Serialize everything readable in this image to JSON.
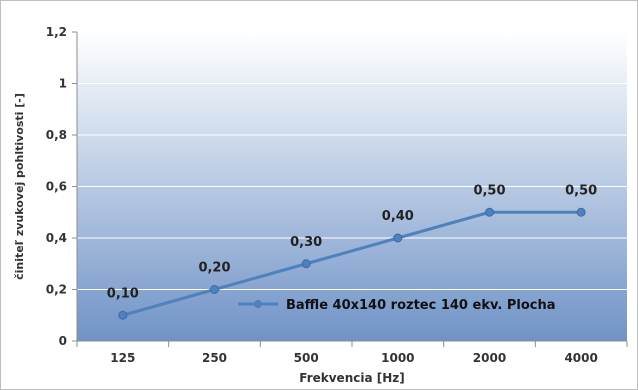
{
  "chart_data": {
    "type": "line",
    "categories": [
      "125",
      "250",
      "500",
      "1000",
      "2000",
      "4000"
    ],
    "series": [
      {
        "name": "Baffle 40x140  roztec 140 ekv. Plocha",
        "values": [
          0.1,
          0.2,
          0.3,
          0.4,
          0.5,
          0.5
        ],
        "labels": [
          "0,10",
          "0,20",
          "0,30",
          "0,40",
          "0,50",
          "0,50"
        ]
      }
    ],
    "xlabel": "Frekvencia [Hz]",
    "ylabel": "činiteľ zvukovej pohltivosti [-]",
    "ylim": [
      0,
      1.2
    ],
    "yticks": [
      0,
      0.2,
      0.4,
      0.6,
      0.8,
      1,
      1.2
    ],
    "ytick_labels": [
      "0",
      "0,2",
      "0,4",
      "0,6",
      "0,8",
      "1",
      "1,2"
    ],
    "grid": true,
    "legend": "bottom-right",
    "colors": {
      "line": "#4f81bd",
      "plot_bg_top": "#ffffff",
      "plot_bg_bottom": "#7093c7",
      "grid": "#ffffff"
    }
  }
}
